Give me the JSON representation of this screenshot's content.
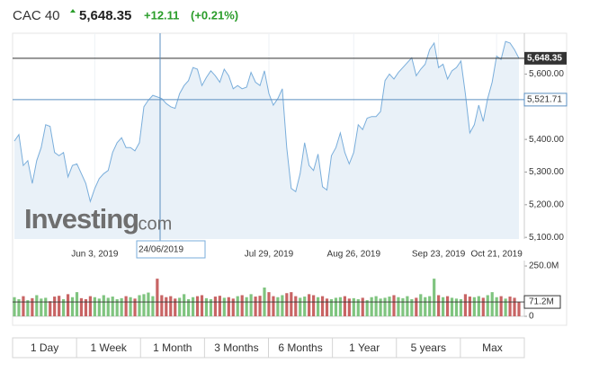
{
  "chart_data": {
    "type": "line",
    "title": "CAC 40",
    "price": "5,648.35",
    "change": "+12.11",
    "change_pct": "(+0.21%)",
    "watermark": [
      "Investing",
      ".com"
    ],
    "color": "#7aaedb",
    "categories": [
      null,
      null,
      null,
      null,
      null,
      null,
      null,
      null,
      null,
      null,
      null,
      null,
      null,
      null,
      null,
      null,
      null,
      null,
      "Jun 3, 2019",
      null,
      null,
      null,
      null,
      null,
      null,
      null,
      null,
      null,
      null,
      null,
      null,
      null,
      null,
      null,
      null,
      null,
      null,
      null,
      null,
      null,
      null,
      null,
      null,
      null,
      null,
      null,
      null,
      null,
      null,
      null,
      null,
      null,
      null,
      null,
      null,
      null,
      null,
      "Jul 29, 2019",
      null,
      null,
      null,
      null,
      null,
      null,
      null,
      null,
      null,
      null,
      null,
      null,
      null,
      null,
      null,
      null,
      null,
      null,
      "Aug 26, 2019",
      null,
      null,
      null,
      null,
      null,
      null,
      null,
      null,
      null,
      null,
      null,
      null,
      null,
      null,
      null,
      null,
      null,
      null,
      "Sep 23, 2019",
      null,
      null,
      null,
      null,
      null,
      null,
      null,
      null,
      null,
      null,
      null,
      null,
      "Oct 21, 2019",
      null,
      null,
      null,
      null,
      null
    ],
    "values": [
      5395,
      5415,
      5320,
      5335,
      5265,
      5335,
      5375,
      5445,
      5440,
      5360,
      5350,
      5360,
      5285,
      5320,
      5325,
      5295,
      5265,
      5210,
      5250,
      5280,
      5295,
      5305,
      5360,
      5390,
      5405,
      5375,
      5375,
      5365,
      5390,
      5500,
      5520,
      5535,
      5530,
      5525,
      5510,
      5500,
      5495,
      5540,
      5565,
      5580,
      5620,
      5615,
      5565,
      5590,
      5610,
      5595,
      5575,
      5615,
      5595,
      5555,
      5565,
      5555,
      5560,
      5605,
      5575,
      5565,
      5610,
      5540,
      5505,
      5525,
      5555,
      5375,
      5250,
      5240,
      5295,
      5390,
      5320,
      5305,
      5355,
      5255,
      5245,
      5350,
      5375,
      5420,
      5360,
      5325,
      5360,
      5445,
      5430,
      5465,
      5470,
      5470,
      5485,
      5580,
      5600,
      5585,
      5605,
      5620,
      5635,
      5650,
      5595,
      5615,
      5630,
      5675,
      5695,
      5620,
      5630,
      5585,
      5610,
      5620,
      5640,
      5540,
      5420,
      5445,
      5505,
      5455,
      5525,
      5575,
      5655,
      5645,
      5700,
      5695,
      5675,
      5648.35
    ],
    "ylim": [
      5095,
      5725
    ],
    "yticks": [
      {
        "value": 5100,
        "label": "5,100.00"
      },
      {
        "value": 5200,
        "label": "5,200.00"
      },
      {
        "value": 5300,
        "label": "5,300.00"
      },
      {
        "value": 5400,
        "label": "5,400.00"
      },
      {
        "value": 5600,
        "label": "5,600.00"
      }
    ],
    "last": {
      "value": 5648.35,
      "label": "5,648.35"
    },
    "crosshair": {
      "date": "24/06/2019",
      "price": {
        "value": 5521.71,
        "label": "5,521.71"
      }
    },
    "volume": {
      "up_color": "#7fc47f",
      "down_color": "#c86464",
      "values": [
        95,
        85,
        100,
        80,
        90,
        105,
        88,
        92,
        75,
        98,
        102,
        85,
        110,
        95,
        120,
        90,
        85,
        100,
        95,
        88,
        105,
        92,
        98,
        85,
        90,
        100,
        95,
        88,
        105,
        110,
        118,
        100,
        187,
        105,
        95,
        100,
        88,
        92,
        110,
        85,
        95,
        100,
        105,
        90,
        85,
        98,
        102,
        92,
        95,
        88,
        100,
        105,
        95,
        110,
        98,
        102,
        143,
        120,
        100,
        95,
        105,
        115,
        120,
        100,
        92,
        98,
        110,
        105,
        95,
        100,
        88,
        85,
        92,
        95,
        100,
        88,
        90,
        85,
        92,
        80,
        95,
        100,
        88,
        92,
        98,
        105,
        95,
        90,
        100,
        85,
        92,
        110,
        95,
        100,
        187,
        105,
        95,
        100,
        92,
        88,
        85,
        110,
        98,
        95,
        100,
        92,
        105,
        120,
        95,
        100,
        88,
        98,
        92,
        71.2
      ],
      "ylim": [
        0,
        277
      ],
      "yticks": [
        0,
        {
          "value": 250,
          "label": "250.0M"
        }
      ],
      "current": {
        "value": 71.2,
        "label": "71.2M"
      }
    },
    "ranges": [
      "1 Day",
      "1 Week",
      "1 Month",
      "3 Months",
      "6 Months",
      "1 Year",
      "5 years",
      "Max"
    ]
  }
}
